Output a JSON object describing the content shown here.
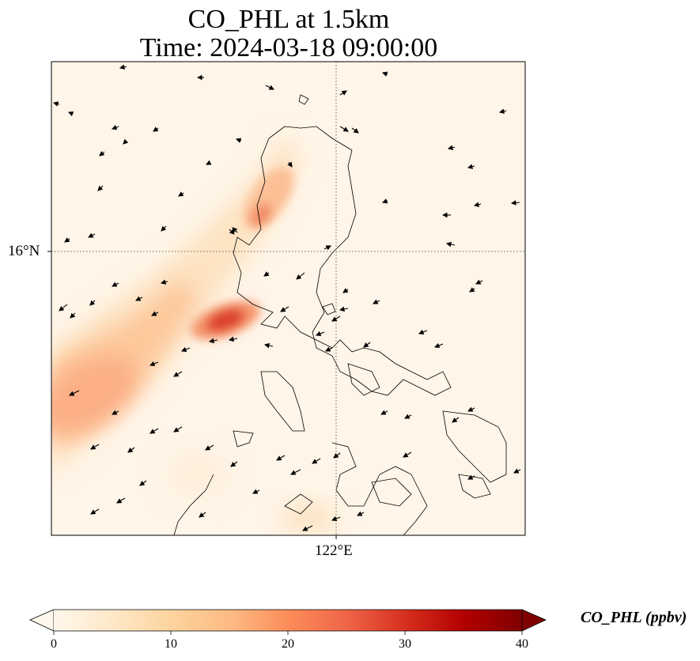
{
  "title": {
    "line1": "CO_PHL at 1.5km",
    "line2": "Time: 2024-03-18 09:00:00"
  },
  "map": {
    "variable": "CO_PHL",
    "level": "1.5km",
    "time": "2024-03-18 09:00:00",
    "gridlines": "dotted",
    "lat_label": "16°N",
    "lon_label": "122°E",
    "colormap": "OrRd",
    "plume_description_hidden": false
  },
  "colorbar": {
    "label": "CO_PHL (ppbv)",
    "min": 0,
    "max": 40,
    "ticks": [
      "0",
      "10",
      "20",
      "30",
      "40"
    ],
    "extend": "both",
    "colors": [
      "#fff7ec",
      "#fee8c8",
      "#fdd49e",
      "#fdbb84",
      "#fc8d59",
      "#ef6548",
      "#d7301f",
      "#b30000",
      "#7f0000"
    ]
  }
}
